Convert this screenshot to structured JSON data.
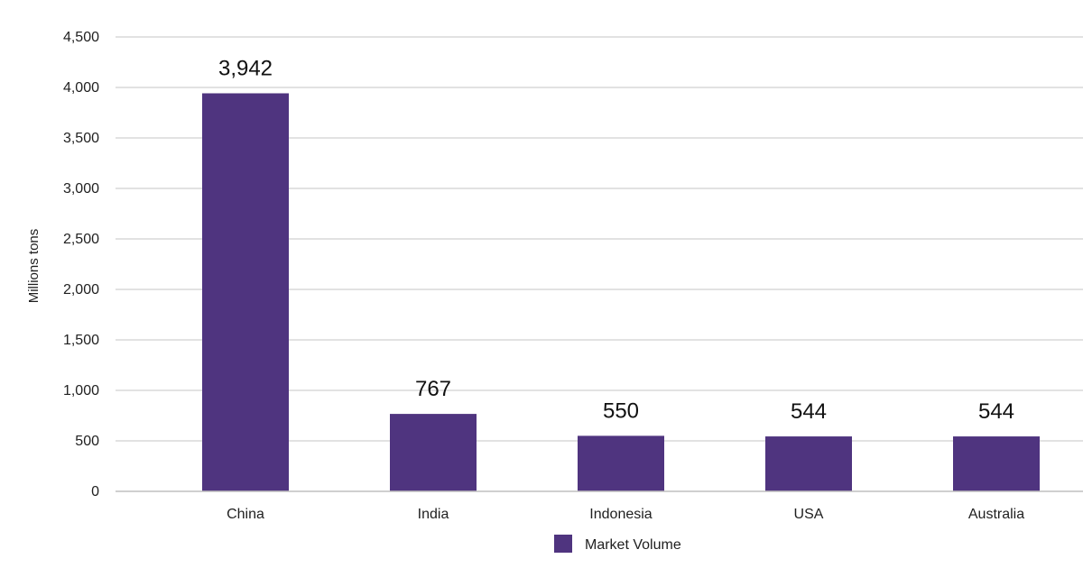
{
  "chart_data": {
    "type": "bar",
    "categories": [
      "China",
      "India",
      "Indonesia",
      "USA",
      "Australia"
    ],
    "series": [
      {
        "name": "Market Volume",
        "values": [
          3942,
          767,
          550,
          544,
          544
        ],
        "data_labels": [
          "3,942",
          "767",
          "550",
          "544",
          "544"
        ]
      }
    ],
    "title": "",
    "xlabel": "",
    "ylabel": "Millions tons",
    "ylim": [
      0,
      4500
    ],
    "yticks": [
      0,
      500,
      1000,
      1500,
      2000,
      2500,
      3000,
      3500,
      4000,
      4500
    ],
    "ytick_labels": [
      "0",
      "500",
      "1,000",
      "1,500",
      "2,000",
      "2,500",
      "3,000",
      "3,500",
      "4,000",
      "4,500"
    ],
    "grid": true,
    "legend": "bottom-center",
    "colors": {
      "bar": "#4f347f",
      "grid": "#d9d9d9",
      "axis": "#bfbfbf"
    }
  }
}
